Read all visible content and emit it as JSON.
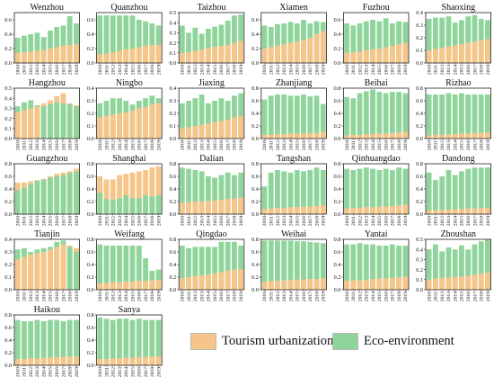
{
  "chart_data": {
    "type": "bar",
    "layout": "small-multiples",
    "overlapping_bars": true,
    "years": [
      "2010",
      "2011",
      "2012",
      "2013",
      "2014",
      "2015",
      "2016",
      "2017",
      "2018",
      "2019"
    ],
    "series_names": [
      "Tourism urbanization",
      "Eco-environment"
    ],
    "colors": {
      "tourism": "#f6c589",
      "eco": "#8fd59b"
    },
    "panels": [
      {
        "title": "Wenzhou",
        "ylim": [
          0,
          0.7
        ],
        "yticks": [
          "0.0",
          "0.2",
          "0.4",
          "0.6"
        ],
        "tourism": [
          0.14,
          0.15,
          0.16,
          0.17,
          0.18,
          0.2,
          0.22,
          0.24,
          0.25,
          0.26
        ],
        "eco": [
          0.35,
          0.38,
          0.4,
          0.42,
          0.36,
          0.45,
          0.5,
          0.52,
          0.65,
          0.55
        ]
      },
      {
        "title": "Quanzhou",
        "ylim": [
          0,
          0.7
        ],
        "yticks": [
          "0.0",
          "0.2",
          "0.4",
          "0.6"
        ],
        "tourism": [
          0.12,
          0.13,
          0.15,
          0.17,
          0.19,
          0.2,
          0.22,
          0.24,
          0.25,
          0.25
        ],
        "eco": [
          0.66,
          0.66,
          0.66,
          0.66,
          0.66,
          0.66,
          0.6,
          0.58,
          0.55,
          0.52
        ]
      },
      {
        "title": "Taizhou",
        "ylim": [
          0,
          0.5
        ],
        "yticks": [
          "0.0",
          "0.1",
          "0.2",
          "0.3",
          "0.4",
          "0.5"
        ],
        "tourism": [
          0.1,
          0.11,
          0.12,
          0.13,
          0.15,
          0.16,
          0.17,
          0.18,
          0.2,
          0.22
        ],
        "eco": [
          0.37,
          0.3,
          0.35,
          0.29,
          0.34,
          0.36,
          0.38,
          0.42,
          0.47,
          0.48
        ]
      },
      {
        "title": "Xiamen",
        "ylim": [
          0,
          0.7
        ],
        "yticks": [
          "0.0",
          "0.2",
          "0.4",
          "0.6"
        ],
        "tourism": [
          0.2,
          0.22,
          0.24,
          0.26,
          0.28,
          0.3,
          0.32,
          0.35,
          0.4,
          0.44
        ],
        "eco": [
          0.52,
          0.5,
          0.54,
          0.55,
          0.57,
          0.55,
          0.6,
          0.55,
          0.58,
          0.57
        ]
      },
      {
        "title": "Fuzhou",
        "ylim": [
          0,
          0.7
        ],
        "yticks": [
          "0.0",
          "0.2",
          "0.4",
          "0.6"
        ],
        "tourism": [
          0.14,
          0.15,
          0.16,
          0.18,
          0.19,
          0.2,
          0.22,
          0.24,
          0.26,
          0.28
        ],
        "eco": [
          0.55,
          0.52,
          0.55,
          0.58,
          0.6,
          0.58,
          0.62,
          0.55,
          0.58,
          0.57
        ]
      },
      {
        "title": "Shaoxing",
        "ylim": [
          0,
          0.4
        ],
        "yticks": [
          "0.0",
          "0.1",
          "0.2",
          "0.3",
          "0.4"
        ],
        "tourism": [
          0.1,
          0.11,
          0.12,
          0.13,
          0.14,
          0.15,
          0.16,
          0.17,
          0.18,
          0.19
        ],
        "eco": [
          0.35,
          0.36,
          0.36,
          0.37,
          0.32,
          0.34,
          0.37,
          0.38,
          0.35,
          0.34
        ]
      },
      {
        "title": "Hangzhou",
        "ylim": [
          0,
          0.5
        ],
        "yticks": [
          "0.0",
          "0.1",
          "0.2",
          "0.3",
          "0.4",
          "0.5"
        ],
        "tourism": [
          0.26,
          0.28,
          0.3,
          0.32,
          0.35,
          0.38,
          0.42,
          0.45,
          0.35,
          0.33
        ],
        "eco": [
          0.32,
          0.36,
          0.38,
          0.33,
          0.32,
          0.34,
          0.36,
          0.35,
          0.34,
          0.32
        ]
      },
      {
        "title": "Ningbo",
        "ylim": [
          0,
          0.4
        ],
        "yticks": [
          "0.0",
          "0.1",
          "0.2",
          "0.3",
          "0.4"
        ],
        "tourism": [
          0.17,
          0.18,
          0.19,
          0.2,
          0.21,
          0.22,
          0.24,
          0.25,
          0.27,
          0.28
        ],
        "eco": [
          0.28,
          0.3,
          0.32,
          0.32,
          0.3,
          0.27,
          0.3,
          0.32,
          0.34,
          0.32
        ]
      },
      {
        "title": "Jiaxing",
        "ylim": [
          0,
          0.4
        ],
        "yticks": [
          "0.0",
          "0.1",
          "0.2",
          "0.3",
          "0.4"
        ],
        "tourism": [
          0.08,
          0.09,
          0.1,
          0.11,
          0.12,
          0.13,
          0.14,
          0.15,
          0.17,
          0.18
        ],
        "eco": [
          0.28,
          0.3,
          0.32,
          0.35,
          0.28,
          0.3,
          0.32,
          0.3,
          0.34,
          0.36
        ]
      },
      {
        "title": "Zhanjiang",
        "ylim": [
          0,
          0.8
        ],
        "yticks": [
          "0.0",
          "0.2",
          "0.4",
          "0.6",
          "0.8"
        ],
        "tourism": [
          0.06,
          0.06,
          0.07,
          0.07,
          0.08,
          0.08,
          0.08,
          0.09,
          0.09,
          0.1
        ],
        "eco": [
          0.62,
          0.68,
          0.7,
          0.7,
          0.68,
          0.68,
          0.7,
          0.67,
          0.68,
          0.55
        ]
      },
      {
        "title": "Beihai",
        "ylim": [
          0,
          0.8
        ],
        "yticks": [
          "0.0",
          "0.2",
          "0.4",
          "0.6",
          "0.8"
        ],
        "tourism": [
          0.05,
          0.06,
          0.06,
          0.07,
          0.07,
          0.08,
          0.08,
          0.09,
          0.1,
          0.1
        ],
        "eco": [
          0.66,
          0.64,
          0.72,
          0.75,
          0.78,
          0.74,
          0.72,
          0.74,
          0.74,
          0.72
        ]
      },
      {
        "title": "Rizhao",
        "ylim": [
          0,
          0.8
        ],
        "yticks": [
          "0.0",
          "0.2",
          "0.4",
          "0.6",
          "0.8"
        ],
        "tourism": [
          0.05,
          0.06,
          0.06,
          0.07,
          0.07,
          0.08,
          0.08,
          0.09,
          0.09,
          0.1
        ],
        "eco": [
          0.7,
          0.7,
          0.7,
          0.72,
          0.7,
          0.72,
          0.7,
          0.7,
          0.7,
          0.7
        ]
      },
      {
        "title": "Guangzhou",
        "ylim": [
          0,
          0.8
        ],
        "yticks": [
          "0.0",
          "0.2",
          "0.4",
          "0.6",
          "0.8"
        ],
        "tourism": [
          0.5,
          0.5,
          0.52,
          0.54,
          0.56,
          0.6,
          0.64,
          0.66,
          0.68,
          0.72
        ],
        "eco": [
          0.38,
          0.42,
          0.48,
          0.53,
          0.55,
          0.58,
          0.6,
          0.62,
          0.65,
          0.68
        ]
      },
      {
        "title": "Shanghai",
        "ylim": [
          0,
          0.8
        ],
        "yticks": [
          "0.0",
          "0.2",
          "0.4",
          "0.6",
          "0.8"
        ],
        "tourism": [
          0.6,
          0.55,
          0.55,
          0.62,
          0.64,
          0.66,
          0.68,
          0.7,
          0.74,
          0.76
        ],
        "eco": [
          0.34,
          0.24,
          0.22,
          0.25,
          0.3,
          0.25,
          0.25,
          0.3,
          0.28,
          0.3
        ]
      },
      {
        "title": "Dalian",
        "ylim": [
          0,
          0.8
        ],
        "yticks": [
          "0.0",
          "0.2",
          "0.4",
          "0.6",
          "0.8"
        ],
        "tourism": [
          0.18,
          0.19,
          0.2,
          0.2,
          0.21,
          0.22,
          0.23,
          0.24,
          0.25,
          0.26
        ],
        "eco": [
          0.74,
          0.72,
          0.7,
          0.68,
          0.6,
          0.58,
          0.62,
          0.66,
          0.62,
          0.66
        ]
      },
      {
        "title": "Tangshan",
        "ylim": [
          0,
          0.8
        ],
        "yticks": [
          "0.0",
          "0.2",
          "0.4",
          "0.6",
          "0.8"
        ],
        "tourism": [
          0.08,
          0.09,
          0.1,
          0.1,
          0.11,
          0.11,
          0.12,
          0.12,
          0.13,
          0.14
        ],
        "eco": [
          0.44,
          0.66,
          0.7,
          0.68,
          0.66,
          0.7,
          0.68,
          0.7,
          0.74,
          0.7
        ]
      },
      {
        "title": "Qinhuangdao",
        "ylim": [
          0,
          0.8
        ],
        "yticks": [
          "0.0",
          "0.2",
          "0.4",
          "0.6",
          "0.8"
        ],
        "tourism": [
          0.09,
          0.1,
          0.1,
          0.11,
          0.11,
          0.12,
          0.12,
          0.13,
          0.14,
          0.15
        ],
        "eco": [
          0.72,
          0.7,
          0.72,
          0.74,
          0.72,
          0.7,
          0.72,
          0.7,
          0.74,
          0.72
        ]
      },
      {
        "title": "Dandong",
        "ylim": [
          0,
          0.8
        ],
        "yticks": [
          "0.0",
          "0.2",
          "0.4",
          "0.6",
          "0.8"
        ],
        "tourism": [
          0.06,
          0.06,
          0.07,
          0.07,
          0.08,
          0.08,
          0.09,
          0.09,
          0.1,
          0.1
        ],
        "eco": [
          0.66,
          0.54,
          0.6,
          0.7,
          0.62,
          0.68,
          0.72,
          0.74,
          0.74,
          0.74
        ]
      },
      {
        "title": "Tianjin",
        "ylim": [
          0,
          0.4
        ],
        "yticks": [
          "0.0",
          "0.1",
          "0.2",
          "0.3",
          "0.4"
        ],
        "tourism": [
          0.24,
          0.26,
          0.28,
          0.29,
          0.3,
          0.32,
          0.34,
          0.36,
          0.35,
          0.33
        ],
        "eco": [
          0.32,
          0.33,
          0.3,
          0.32,
          0.33,
          0.34,
          0.38,
          0.39,
          0.34,
          0.3
        ]
      },
      {
        "title": "Weifang",
        "ylim": [
          0,
          0.8
        ],
        "yticks": [
          "0.0",
          "0.2",
          "0.4",
          "0.6",
          "0.8"
        ],
        "tourism": [
          0.1,
          0.11,
          0.12,
          0.12,
          0.13,
          0.13,
          0.14,
          0.14,
          0.15,
          0.16
        ],
        "eco": [
          0.72,
          0.7,
          0.7,
          0.7,
          0.7,
          0.7,
          0.7,
          0.5,
          0.3,
          0.32
        ]
      },
      {
        "title": "Qingdao",
        "ylim": [
          0,
          0.8
        ],
        "yticks": [
          "0.0",
          "0.2",
          "0.4",
          "0.6",
          "0.8"
        ],
        "tourism": [
          0.18,
          0.2,
          0.22,
          0.23,
          0.24,
          0.26,
          0.28,
          0.3,
          0.32,
          0.33
        ],
        "eco": [
          0.7,
          0.66,
          0.68,
          0.68,
          0.68,
          0.68,
          0.76,
          0.76,
          0.76,
          0.7
        ]
      },
      {
        "title": "Weihai",
        "ylim": [
          0,
          0.8
        ],
        "yticks": [
          "0.0",
          "0.2",
          "0.4",
          "0.6",
          "0.8"
        ],
        "tourism": [
          0.13,
          0.14,
          0.14,
          0.15,
          0.15,
          0.16,
          0.16,
          0.17,
          0.17,
          0.18
        ],
        "eco": [
          0.78,
          0.78,
          0.78,
          0.78,
          0.78,
          0.77,
          0.77,
          0.76,
          0.75,
          0.74
        ]
      },
      {
        "title": "Yantai",
        "ylim": [
          0,
          0.8
        ],
        "yticks": [
          "0.0",
          "0.2",
          "0.4",
          "0.6",
          "0.8"
        ],
        "tourism": [
          0.14,
          0.15,
          0.15,
          0.16,
          0.17,
          0.18,
          0.18,
          0.19,
          0.2,
          0.21
        ],
        "eco": [
          0.72,
          0.72,
          0.74,
          0.72,
          0.72,
          0.7,
          0.7,
          0.72,
          0.7,
          0.7
        ]
      },
      {
        "title": "Zhoushan",
        "ylim": [
          0,
          0.5
        ],
        "yticks": [
          "0.0",
          "0.1",
          "0.2",
          "0.3",
          "0.4",
          "0.5"
        ],
        "tourism": [
          0.1,
          0.11,
          0.12,
          0.12,
          0.13,
          0.13,
          0.14,
          0.15,
          0.16,
          0.17
        ],
        "eco": [
          0.4,
          0.45,
          0.38,
          0.42,
          0.4,
          0.44,
          0.4,
          0.45,
          0.48,
          0.5
        ]
      },
      {
        "title": "Haikou",
        "ylim": [
          0,
          0.8
        ],
        "yticks": [
          "0.0",
          "0.2",
          "0.4",
          "0.6",
          "0.8"
        ],
        "tourism": [
          0.1,
          0.1,
          0.11,
          0.11,
          0.12,
          0.12,
          0.13,
          0.13,
          0.14,
          0.14
        ],
        "eco": [
          0.72,
          0.7,
          0.7,
          0.72,
          0.7,
          0.72,
          0.72,
          0.7,
          0.72,
          0.72
        ]
      },
      {
        "title": "Sanya",
        "ylim": [
          0,
          0.8
        ],
        "yticks": [
          "0.0",
          "0.2",
          "0.4",
          "0.6",
          "0.8"
        ],
        "tourism": [
          0.1,
          0.1,
          0.11,
          0.11,
          0.12,
          0.12,
          0.13,
          0.13,
          0.14,
          0.14
        ],
        "eco": [
          0.76,
          0.74,
          0.72,
          0.74,
          0.74,
          0.72,
          0.74,
          0.72,
          0.72,
          0.72
        ]
      }
    ]
  },
  "legend": {
    "tourism_label": "Tourism urbanization",
    "eco_label": "Eco-environment"
  }
}
